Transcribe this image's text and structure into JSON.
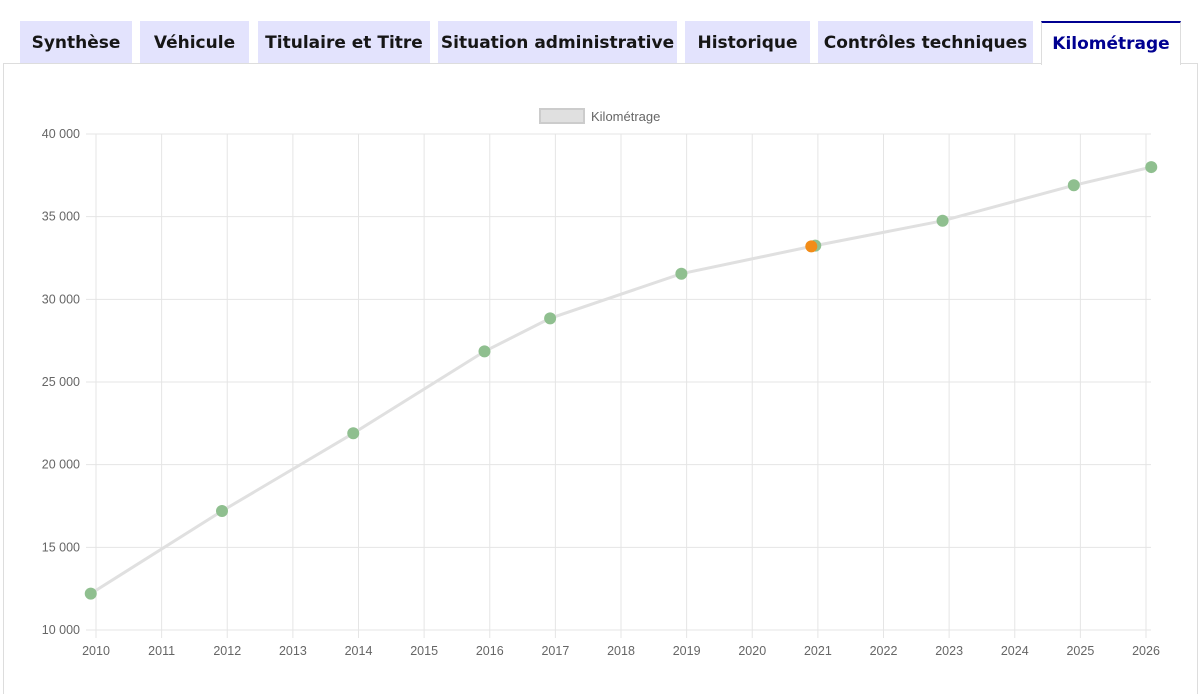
{
  "tabs": [
    {
      "label": "Synthèse",
      "name": "tab-synthese",
      "active": false
    },
    {
      "label": "Véhicule",
      "name": "tab-vehicule",
      "active": false
    },
    {
      "label": "Titulaire et Titre",
      "name": "tab-titulaire-et-titre",
      "active": false
    },
    {
      "label": "Situation administrative",
      "name": "tab-situation-administrative",
      "active": false
    },
    {
      "label": "Historique",
      "name": "tab-historique",
      "active": false
    },
    {
      "label": "Contrôles techniques",
      "name": "tab-controles-techniques",
      "active": false
    },
    {
      "label": "Kilométrage",
      "name": "tab-kilometrage",
      "active": true
    }
  ],
  "colors": {
    "tab_bg": "#e3e3fd",
    "tab_active_text": "#000091",
    "line": "#e0e0e0",
    "point_ok": "#8fbf8f",
    "point_alert": "#f28c18"
  },
  "chart_data": {
    "type": "line",
    "legend": {
      "label": "Kilométrage",
      "position": "top-center"
    },
    "x_ticks": [
      "2010",
      "2011",
      "2012",
      "2013",
      "2014",
      "2015",
      "2016",
      "2017",
      "2018",
      "2019",
      "2020",
      "2021",
      "2022",
      "2023",
      "2024",
      "2025",
      "2026"
    ],
    "y_ticks": [
      "10 000",
      "15 000",
      "20 000",
      "25 000",
      "30 000",
      "35 000",
      "40 000"
    ],
    "xlim": [
      2010,
      2026
    ],
    "ylim": [
      10000,
      40000
    ],
    "grid": true,
    "series": [
      {
        "name": "Kilométrage",
        "points": [
          {
            "x": 2009.92,
            "y": 12200,
            "status": "ok"
          },
          {
            "x": 2011.92,
            "y": 17200,
            "status": "ok"
          },
          {
            "x": 2013.92,
            "y": 21900,
            "status": "ok"
          },
          {
            "x": 2015.92,
            "y": 26850,
            "status": "ok"
          },
          {
            "x": 2016.92,
            "y": 28850,
            "status": "ok"
          },
          {
            "x": 2018.92,
            "y": 31550,
            "status": "ok"
          },
          {
            "x": 2020.96,
            "y": 33250,
            "status": "ok"
          },
          {
            "x": 2020.9,
            "y": 33200,
            "status": "alert"
          },
          {
            "x": 2022.9,
            "y": 34750,
            "status": "ok"
          },
          {
            "x": 2024.9,
            "y": 36900,
            "status": "ok"
          },
          {
            "x": 2026.08,
            "y": 38000,
            "status": "ok"
          }
        ]
      }
    ]
  }
}
